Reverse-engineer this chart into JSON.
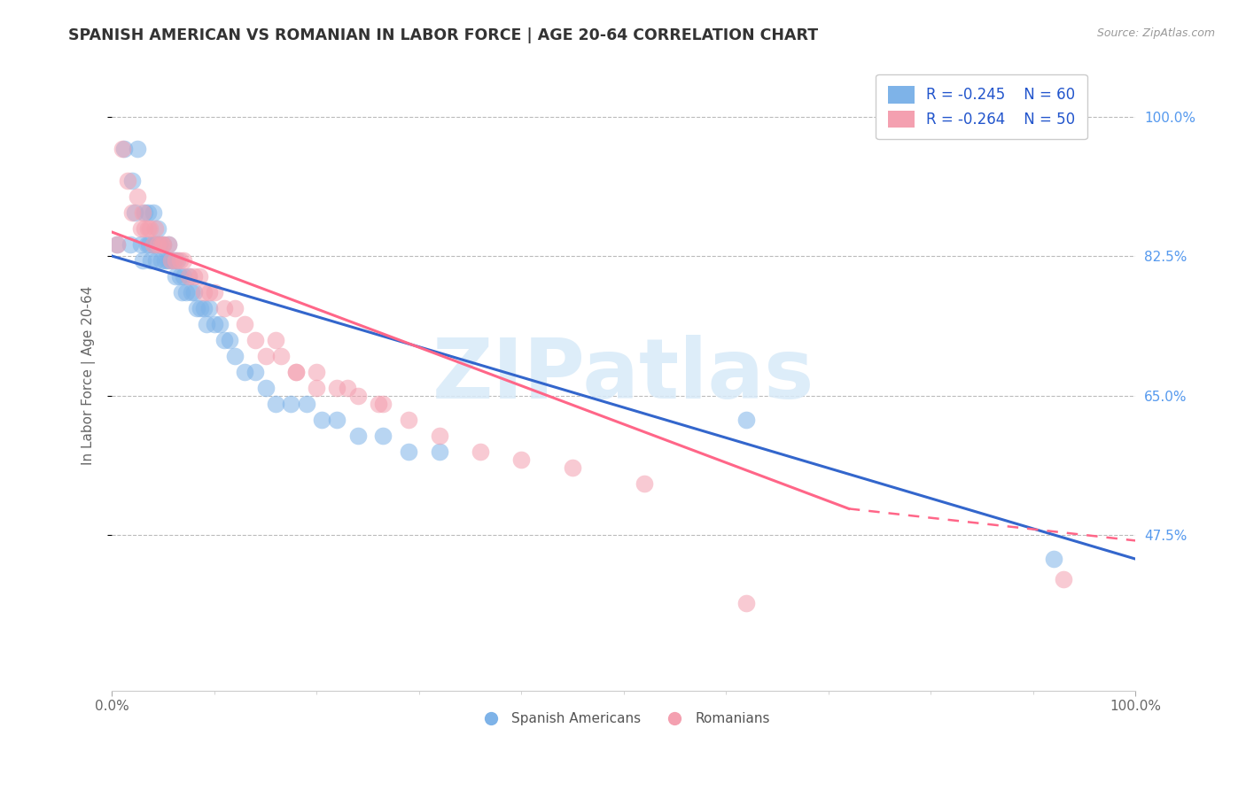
{
  "title": "SPANISH AMERICAN VS ROMANIAN IN LABOR FORCE | AGE 20-64 CORRELATION CHART",
  "source": "Source: ZipAtlas.com",
  "ylabel": "In Labor Force | Age 20-64",
  "ytick_values": [
    1.0,
    0.825,
    0.65,
    0.475
  ],
  "ytick_labels_right": [
    "100.0%",
    "82.5%",
    "65.0%",
    "47.5%"
  ],
  "xlim": [
    0.0,
    1.0
  ],
  "ylim": [
    0.28,
    1.07
  ],
  "legend_r1": "R = -0.245",
  "legend_n1": "N = 60",
  "legend_r2": "R = -0.264",
  "legend_n2": "N = 50",
  "color_blue": "#7EB3E8",
  "color_pink": "#F4A0B0",
  "trendline_blue": "#3366CC",
  "trendline_pink": "#FF6688",
  "watermark": "ZIPatlas",
  "blue_trend_x0": 0.0,
  "blue_trend_y0": 0.825,
  "blue_trend_x1": 1.0,
  "blue_trend_y1": 0.445,
  "pink_trend_x0": 0.0,
  "pink_trend_y0": 0.855,
  "pink_trend_x1_solid": 0.72,
  "pink_trend_y1_solid": 0.508,
  "pink_trend_x1_dash": 1.0,
  "pink_trend_y1_dash": 0.468,
  "blue_x": [
    0.005,
    0.012,
    0.018,
    0.02,
    0.022,
    0.025,
    0.028,
    0.03,
    0.032,
    0.034,
    0.035,
    0.036,
    0.038,
    0.04,
    0.04,
    0.042,
    0.043,
    0.044,
    0.045,
    0.046,
    0.048,
    0.05,
    0.052,
    0.054,
    0.055,
    0.057,
    0.06,
    0.062,
    0.064,
    0.066,
    0.068,
    0.07,
    0.072,
    0.075,
    0.078,
    0.08,
    0.083,
    0.086,
    0.09,
    0.092,
    0.095,
    0.1,
    0.105,
    0.11,
    0.115,
    0.12,
    0.13,
    0.14,
    0.15,
    0.16,
    0.175,
    0.19,
    0.205,
    0.22,
    0.24,
    0.265,
    0.29,
    0.32,
    0.62,
    0.92
  ],
  "blue_y": [
    0.84,
    0.96,
    0.84,
    0.92,
    0.88,
    0.96,
    0.84,
    0.82,
    0.88,
    0.84,
    0.88,
    0.84,
    0.82,
    0.84,
    0.88,
    0.84,
    0.82,
    0.84,
    0.86,
    0.84,
    0.82,
    0.84,
    0.82,
    0.82,
    0.84,
    0.82,
    0.82,
    0.8,
    0.82,
    0.8,
    0.78,
    0.8,
    0.78,
    0.8,
    0.78,
    0.78,
    0.76,
    0.76,
    0.76,
    0.74,
    0.76,
    0.74,
    0.74,
    0.72,
    0.72,
    0.7,
    0.68,
    0.68,
    0.66,
    0.64,
    0.64,
    0.64,
    0.62,
    0.62,
    0.6,
    0.6,
    0.58,
    0.58,
    0.62,
    0.445
  ],
  "pink_x": [
    0.005,
    0.01,
    0.015,
    0.02,
    0.025,
    0.028,
    0.03,
    0.032,
    0.035,
    0.037,
    0.04,
    0.042,
    0.045,
    0.048,
    0.05,
    0.055,
    0.058,
    0.062,
    0.066,
    0.07,
    0.075,
    0.08,
    0.085,
    0.09,
    0.095,
    0.1,
    0.11,
    0.12,
    0.13,
    0.14,
    0.15,
    0.165,
    0.18,
    0.2,
    0.22,
    0.24,
    0.265,
    0.16,
    0.18,
    0.2,
    0.23,
    0.26,
    0.29,
    0.32,
    0.36,
    0.4,
    0.45,
    0.52,
    0.62,
    0.93
  ],
  "pink_y": [
    0.84,
    0.96,
    0.92,
    0.88,
    0.9,
    0.86,
    0.88,
    0.86,
    0.86,
    0.86,
    0.84,
    0.86,
    0.84,
    0.84,
    0.84,
    0.84,
    0.82,
    0.82,
    0.82,
    0.82,
    0.8,
    0.8,
    0.8,
    0.78,
    0.78,
    0.78,
    0.76,
    0.76,
    0.74,
    0.72,
    0.7,
    0.7,
    0.68,
    0.68,
    0.66,
    0.65,
    0.64,
    0.72,
    0.68,
    0.66,
    0.66,
    0.64,
    0.62,
    0.6,
    0.58,
    0.57,
    0.56,
    0.54,
    0.39,
    0.42
  ]
}
